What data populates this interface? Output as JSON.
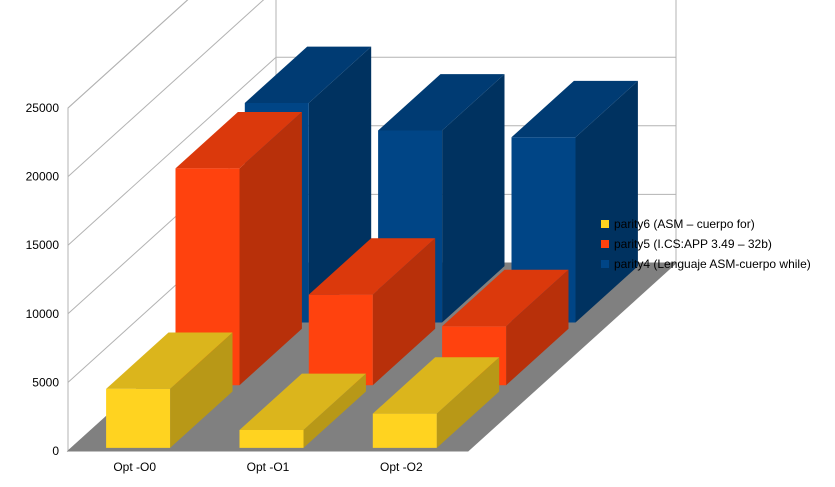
{
  "chart_data": {
    "type": "bar",
    "categories": [
      "Opt -O0",
      "Opt -O1",
      "Opt -O2"
    ],
    "series": [
      {
        "name": "parity6 (ASM – cuerpo for)",
        "values": [
          4300,
          1300,
          2500
        ],
        "color": "#ffd320"
      },
      {
        "name": "parity5 (I.CS:APP 3.49 – 32b)",
        "values": [
          15800,
          6600,
          4300
        ],
        "color": "#ff420e"
      },
      {
        "name": "parity4 (Lenguaje ASM-cuerpo while)",
        "values": [
          16000,
          14000,
          13500
        ],
        "color": "#004586"
      }
    ],
    "y_ticks": [
      "0",
      "5000",
      "10000",
      "15000",
      "20000",
      "25000"
    ],
    "ylim": [
      0,
      25000
    ],
    "grid": true,
    "legend": "right",
    "title": "",
    "xlabel": "",
    "ylabel": ""
  }
}
